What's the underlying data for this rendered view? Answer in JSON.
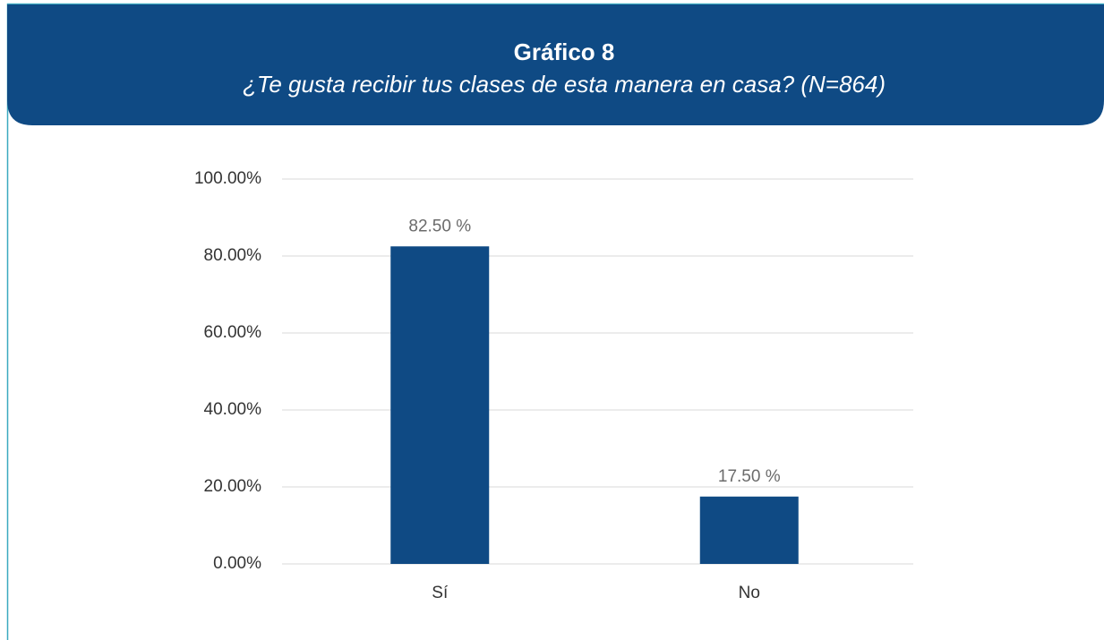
{
  "chart_data": {
    "type": "bar",
    "title": "Gráfico 8",
    "subtitle": "¿Te gusta recibir tus clases de esta manera en casa? (N=864)",
    "categories": [
      "Sí",
      "No"
    ],
    "values": [
      82.5,
      17.5
    ],
    "value_labels": [
      "82.50 %",
      "17.50 %"
    ],
    "color": "#0f4a84",
    "ylim": [
      0,
      100
    ],
    "yticks": [
      {
        "value": 0,
        "label": "0.00%"
      },
      {
        "value": 20,
        "label": "20.00%"
      },
      {
        "value": 40,
        "label": "40.00%"
      },
      {
        "value": 60,
        "label": "60.00%"
      },
      {
        "value": 80,
        "label": "80.00%"
      },
      {
        "value": 100,
        "label": "100.00%"
      }
    ],
    "grid": true
  }
}
